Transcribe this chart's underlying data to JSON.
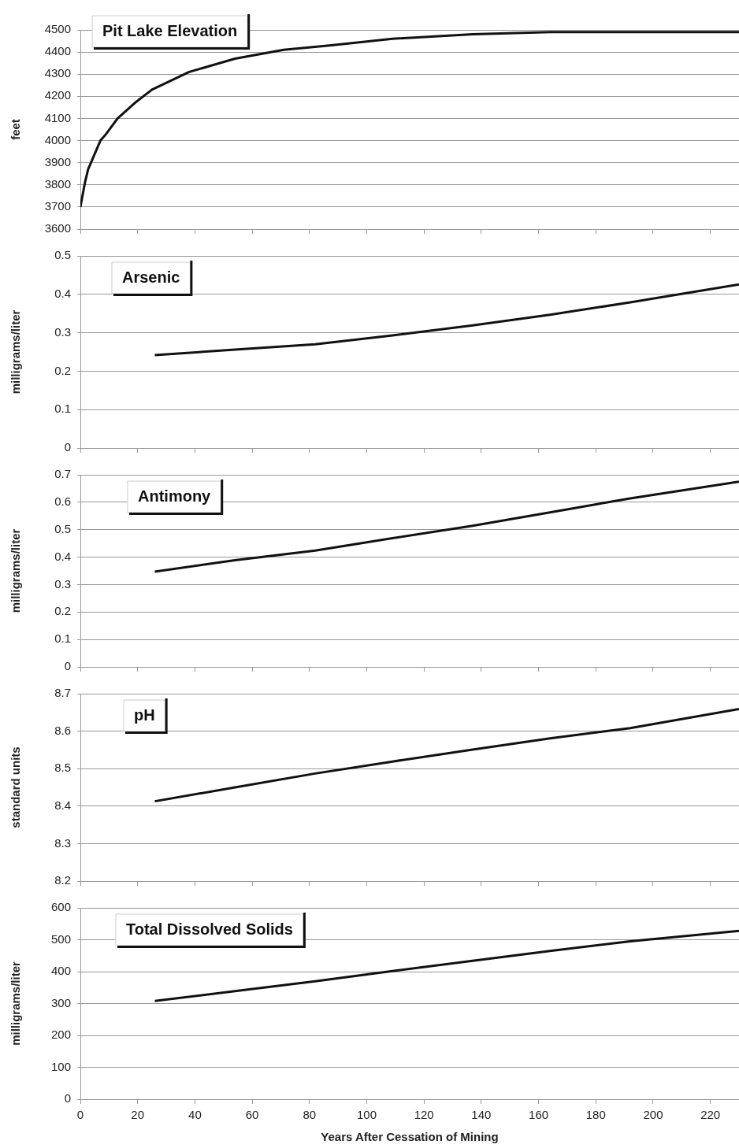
{
  "chart_data": [
    {
      "type": "line",
      "title": "Pit Lake Elevation",
      "ylabel": "feet",
      "x": [
        0,
        1.6,
        2.7,
        7,
        9,
        13,
        19,
        25,
        38,
        54,
        71,
        87,
        109,
        137,
        164,
        230
      ],
      "values": [
        3700,
        3810,
        3870,
        4000,
        4030,
        4100,
        4170,
        4230,
        4310,
        4370,
        4410,
        4430,
        4460,
        4480,
        4490,
        4490
      ],
      "color": "#111111",
      "xlim": [
        0,
        230
      ],
      "xticks": [
        0,
        20,
        40,
        60,
        80,
        100,
        120,
        140,
        160,
        180,
        200,
        220
      ],
      "ylim": [
        3600,
        4500
      ],
      "yticks": [
        3600,
        3700,
        3800,
        3900,
        4000,
        4100,
        4200,
        4300,
        4400,
        4500
      ],
      "grid": "y",
      "tick_labels": "y"
    },
    {
      "type": "line",
      "title": "Arsenic",
      "ylabel": "milligrams/liter",
      "x": [
        26,
        54,
        82,
        109,
        137,
        164,
        192,
        230
      ],
      "values": [
        0.242,
        0.256,
        0.27,
        0.293,
        0.319,
        0.347,
        0.379,
        0.426
      ],
      "color": "#111111",
      "xlim": [
        0,
        230
      ],
      "xticks": [
        0,
        20,
        40,
        60,
        80,
        100,
        120,
        140,
        160,
        180,
        200,
        220
      ],
      "ylim": [
        0,
        0.5
      ],
      "yticks": [
        0,
        0.1,
        0.2,
        0.3,
        0.4,
        0.5
      ],
      "grid": "y",
      "tick_labels": "y"
    },
    {
      "type": "line",
      "title": "Antimony",
      "ylabel": "milligrams/liter",
      "x": [
        26,
        54,
        82,
        109,
        137,
        164,
        192,
        230
      ],
      "values": [
        0.347,
        0.389,
        0.424,
        0.469,
        0.514,
        0.563,
        0.614,
        0.675
      ],
      "color": "#111111",
      "xlim": [
        0,
        230
      ],
      "xticks": [
        0,
        20,
        40,
        60,
        80,
        100,
        120,
        140,
        160,
        180,
        200,
        220
      ],
      "ylim": [
        0,
        0.7
      ],
      "yticks": [
        0,
        0.1,
        0.2,
        0.3,
        0.4,
        0.5,
        0.6,
        0.7
      ],
      "grid": "y",
      "tick_labels": "y"
    },
    {
      "type": "line",
      "title": "pH",
      "ylabel": "standard units",
      "x": [
        26,
        54,
        82,
        109,
        137,
        164,
        192,
        230
      ],
      "values": [
        8.413,
        8.45,
        8.487,
        8.519,
        8.551,
        8.581,
        8.608,
        8.659
      ],
      "color": "#111111",
      "xlim": [
        0,
        230
      ],
      "xticks": [
        0,
        20,
        40,
        60,
        80,
        100,
        120,
        140,
        160,
        180,
        200,
        220
      ],
      "ylim": [
        8.2,
        8.7
      ],
      "yticks": [
        8.2,
        8.3,
        8.4,
        8.5,
        8.6,
        8.7
      ],
      "grid": "y",
      "tick_labels": "y"
    },
    {
      "type": "line",
      "title": "Total Dissolved Solids",
      "ylabel": "milligrams/liter",
      "xlabel": "Years After Cessation of Mining",
      "x": [
        26,
        54,
        82,
        109,
        137,
        164,
        192,
        230
      ],
      "values": [
        308,
        339,
        370,
        402,
        434,
        465,
        495,
        528
      ],
      "color": "#111111",
      "xlim": [
        0,
        230
      ],
      "xticks": [
        0,
        20,
        40,
        60,
        80,
        100,
        120,
        140,
        160,
        180,
        200,
        220
      ],
      "ylim": [
        0,
        600
      ],
      "yticks": [
        0,
        100,
        200,
        300,
        400,
        500,
        600
      ],
      "grid": "y"
    }
  ]
}
